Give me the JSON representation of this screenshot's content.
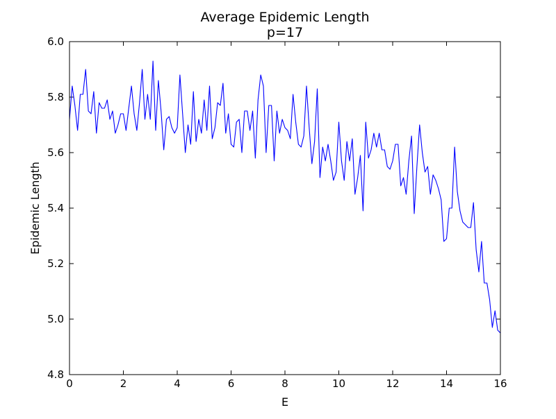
{
  "chart_data": {
    "type": "line",
    "title": "Average Epidemic Length",
    "subtitle": "p=17",
    "xlabel": "E",
    "ylabel": "Epidemic Length",
    "xlim": [
      0,
      16
    ],
    "ylim": [
      4.8,
      6.0
    ],
    "xticks": [
      "0",
      "2",
      "4",
      "6",
      "8",
      "10",
      "12",
      "14",
      "16"
    ],
    "yticks": [
      "4.8",
      "5.0",
      "5.2",
      "5.4",
      "5.6",
      "5.8",
      "6.0"
    ],
    "grid": false,
    "legend": "none",
    "series": [
      {
        "color": "#0000ff",
        "x": [
          0.0,
          0.1,
          0.2,
          0.3,
          0.4,
          0.5,
          0.6,
          0.7,
          0.8,
          0.9,
          1.0,
          1.1,
          1.2,
          1.3,
          1.4,
          1.5,
          1.6,
          1.7,
          1.8,
          1.9,
          2.0,
          2.1,
          2.2,
          2.3,
          2.4,
          2.5,
          2.6,
          2.7,
          2.8,
          2.9,
          3.0,
          3.1,
          3.2,
          3.3,
          3.4,
          3.5,
          3.6,
          3.7,
          3.8,
          3.9,
          4.0,
          4.1,
          4.2,
          4.3,
          4.4,
          4.5,
          4.6,
          4.7,
          4.8,
          4.9,
          5.0,
          5.1,
          5.2,
          5.3,
          5.4,
          5.5,
          5.6,
          5.7,
          5.8,
          5.9,
          6.0,
          6.1,
          6.2,
          6.3,
          6.4,
          6.5,
          6.6,
          6.7,
          6.8,
          6.9,
          7.0,
          7.1,
          7.2,
          7.3,
          7.4,
          7.5,
          7.6,
          7.7,
          7.8,
          7.9,
          8.0,
          8.1,
          8.2,
          8.3,
          8.4,
          8.5,
          8.6,
          8.7,
          8.8,
          8.9,
          9.0,
          9.1,
          9.2,
          9.3,
          9.4,
          9.5,
          9.6,
          9.7,
          9.8,
          9.9,
          10.0,
          10.1,
          10.2,
          10.3,
          10.4,
          10.5,
          10.6,
          10.7,
          10.8,
          10.9,
          11.0,
          11.1,
          11.2,
          11.3,
          11.4,
          11.5,
          11.6,
          11.7,
          11.8,
          11.9,
          12.0,
          12.1,
          12.2,
          12.3,
          12.4,
          12.5,
          12.6,
          12.7,
          12.8,
          12.9,
          13.0,
          13.1,
          13.2,
          13.3,
          13.4,
          13.5,
          13.6,
          13.7,
          13.8,
          13.9,
          14.0,
          14.1,
          14.2,
          14.3,
          14.4,
          14.5,
          14.6,
          14.7,
          14.8,
          14.9,
          15.0,
          15.1,
          15.2,
          15.3,
          15.4,
          15.5,
          15.6,
          15.7,
          15.8,
          15.9,
          16.0
        ],
        "y": [
          5.72,
          5.84,
          5.77,
          5.68,
          5.81,
          5.81,
          5.9,
          5.75,
          5.74,
          5.82,
          5.67,
          5.78,
          5.76,
          5.76,
          5.79,
          5.72,
          5.75,
          5.67,
          5.7,
          5.74,
          5.74,
          5.68,
          5.76,
          5.84,
          5.74,
          5.68,
          5.78,
          5.9,
          5.72,
          5.81,
          5.72,
          5.93,
          5.68,
          5.86,
          5.75,
          5.61,
          5.72,
          5.73,
          5.69,
          5.67,
          5.69,
          5.88,
          5.74,
          5.6,
          5.7,
          5.63,
          5.82,
          5.64,
          5.72,
          5.67,
          5.79,
          5.68,
          5.84,
          5.65,
          5.69,
          5.78,
          5.77,
          5.85,
          5.67,
          5.74,
          5.63,
          5.62,
          5.71,
          5.72,
          5.6,
          5.75,
          5.75,
          5.68,
          5.75,
          5.58,
          5.79,
          5.88,
          5.84,
          5.6,
          5.77,
          5.77,
          5.57,
          5.75,
          5.67,
          5.72,
          5.69,
          5.68,
          5.65,
          5.81,
          5.71,
          5.63,
          5.62,
          5.66,
          5.84,
          5.69,
          5.56,
          5.64,
          5.83,
          5.51,
          5.62,
          5.57,
          5.63,
          5.57,
          5.5,
          5.53,
          5.71,
          5.57,
          5.5,
          5.64,
          5.57,
          5.65,
          5.45,
          5.51,
          5.59,
          5.39,
          5.71,
          5.58,
          5.61,
          5.67,
          5.62,
          5.67,
          5.61,
          5.61,
          5.55,
          5.54,
          5.57,
          5.63,
          5.63,
          5.48,
          5.51,
          5.45,
          5.57,
          5.66,
          5.38,
          5.55,
          5.7,
          5.6,
          5.53,
          5.55,
          5.45,
          5.52,
          5.5,
          5.47,
          5.43,
          5.28,
          5.29,
          5.4,
          5.4,
          5.62,
          5.46,
          5.39,
          5.35,
          5.34,
          5.33,
          5.33,
          5.42,
          5.25,
          5.17,
          5.28,
          5.13,
          5.13,
          5.07,
          4.97,
          5.03,
          4.96,
          4.95
        ]
      }
    ]
  }
}
